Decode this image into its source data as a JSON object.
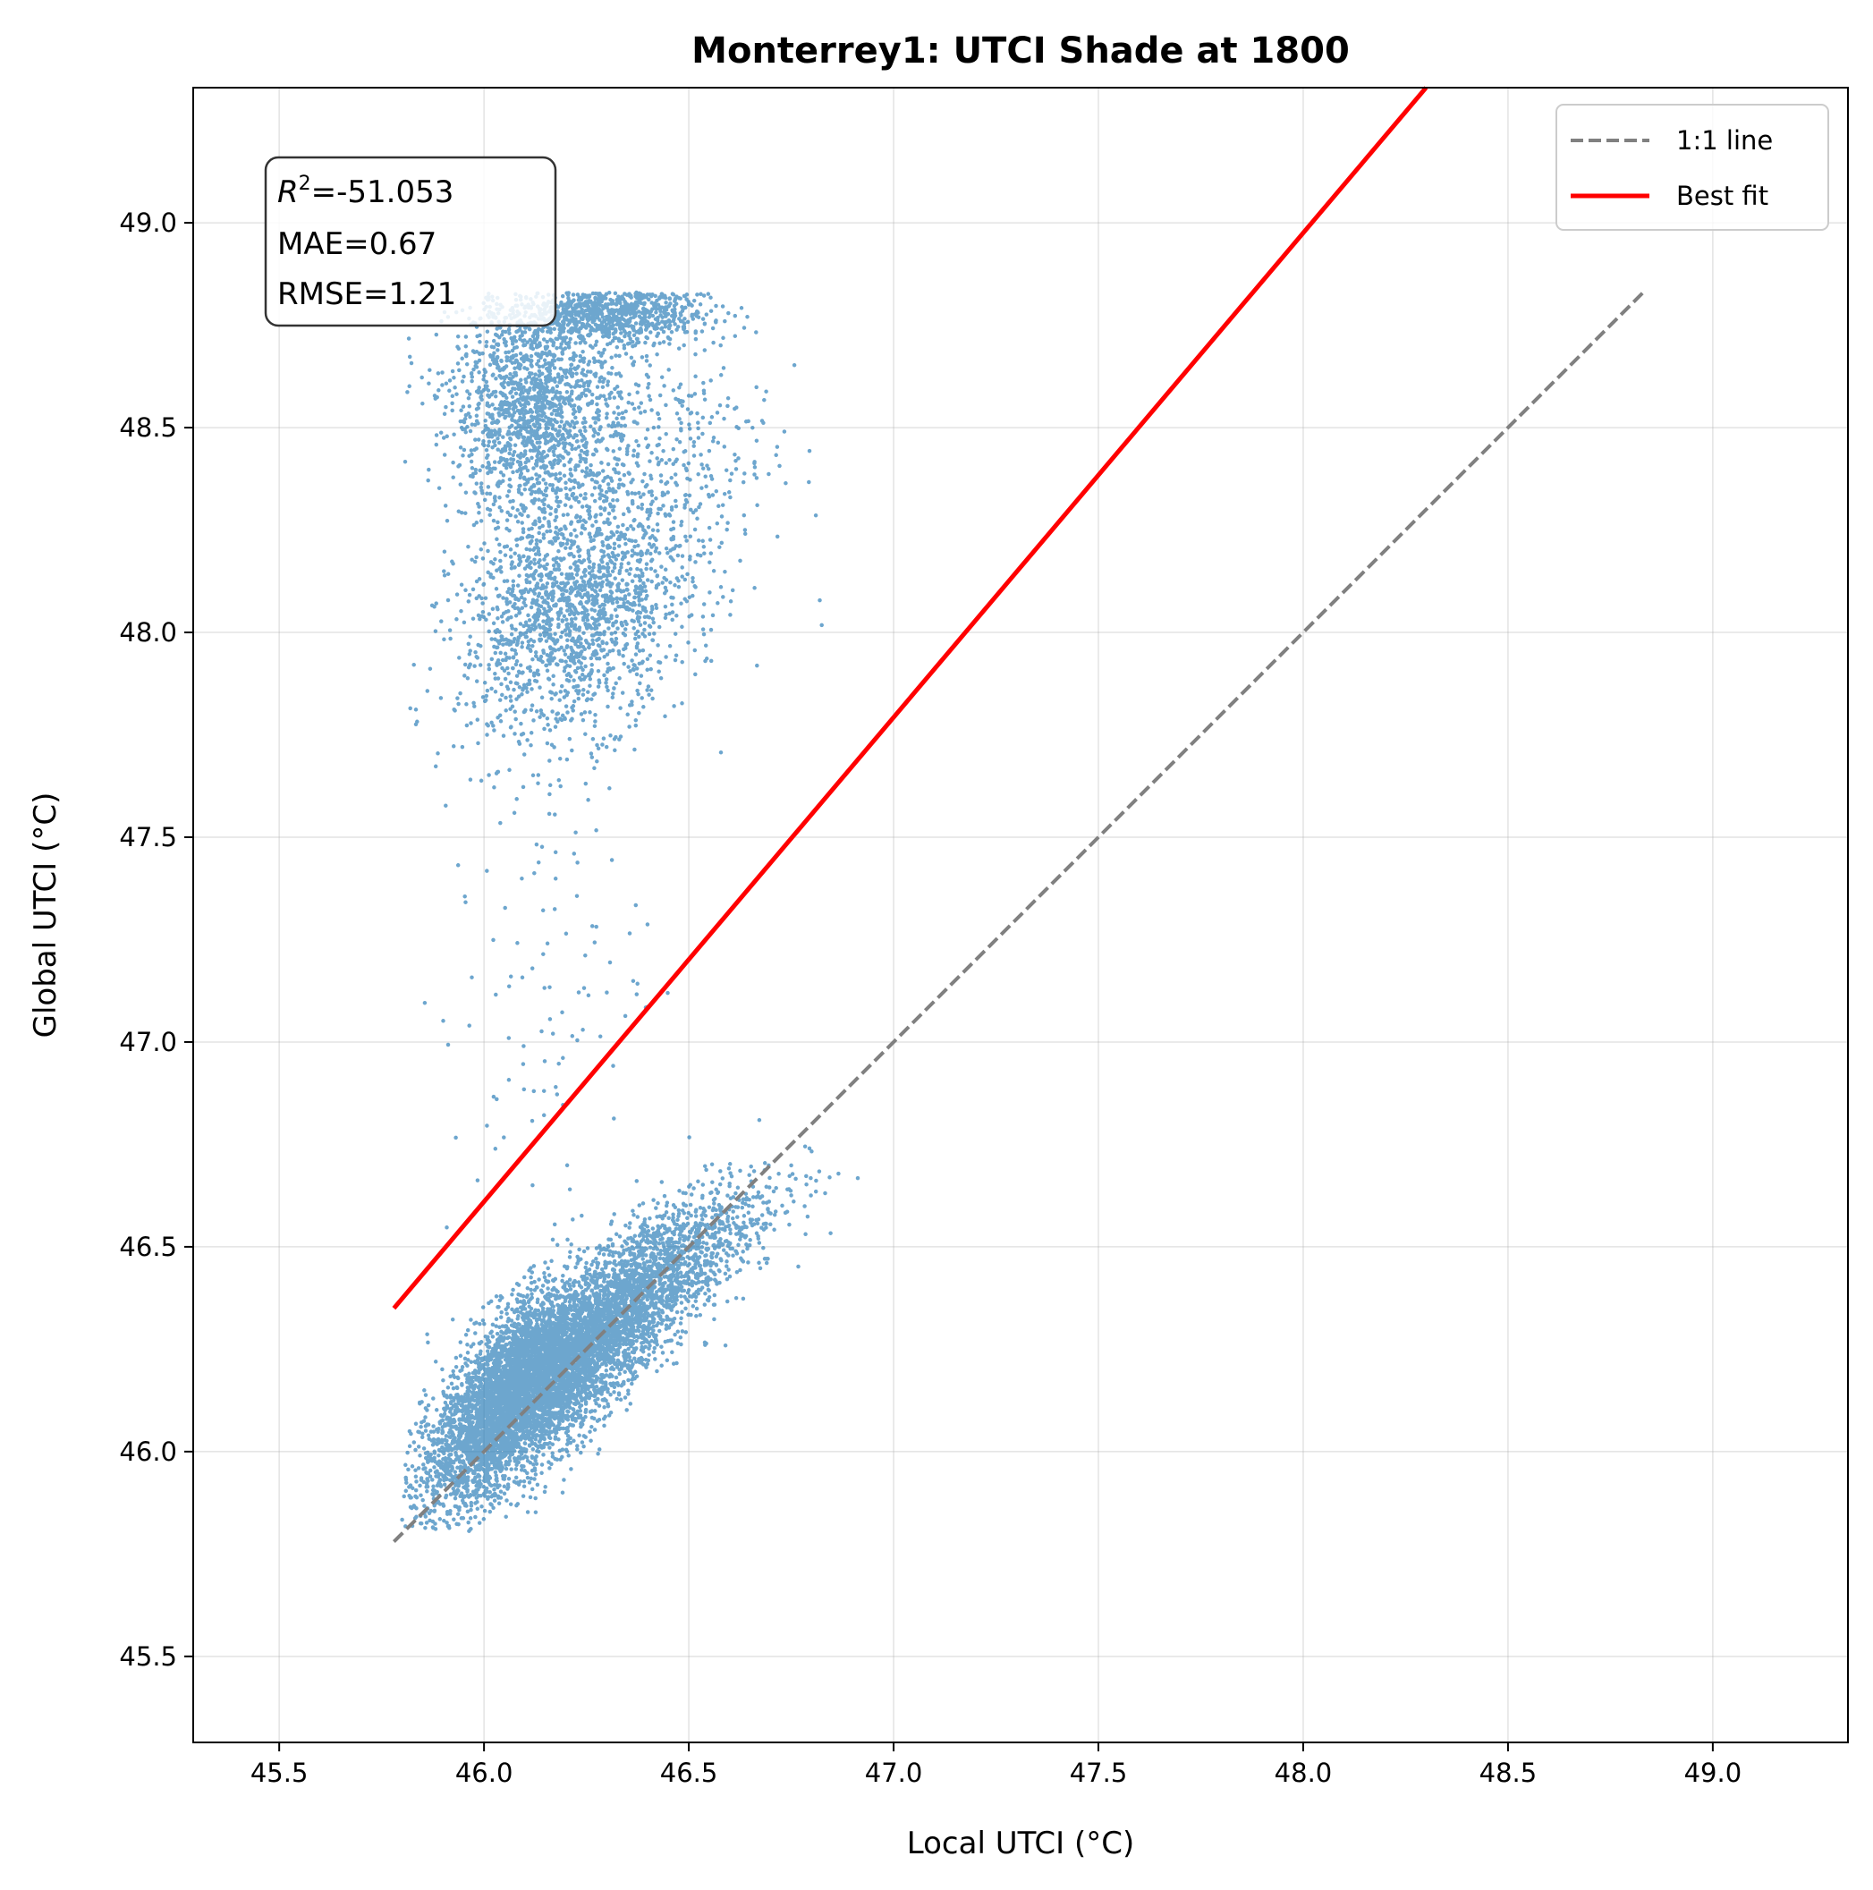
{
  "chart_data": {
    "type": "scatter",
    "title": "Monterrey1: UTCI Shade at 1800",
    "xlabel": "Local UTCI (°C)",
    "ylabel": "Global UTCI (°C)",
    "xlim": [
      45.29,
      49.33
    ],
    "ylim": [
      45.29,
      49.33
    ],
    "xticks": [
      "45.5",
      "46.0",
      "46.5",
      "47.0",
      "47.5",
      "48.0",
      "48.5",
      "49.0"
    ],
    "yticks": [
      "45.5",
      "46.0",
      "46.5",
      "47.0",
      "47.5",
      "48.0",
      "48.5",
      "49.0"
    ],
    "grid": true,
    "legend_position": "top-right",
    "point_color": "#1f77b4",
    "stats": {
      "r2_label": "R",
      "r2_sup": "2",
      "r2_value": "=-51.053",
      "mae": "MAE=0.67",
      "rmse": "RMSE=1.21"
    },
    "series": [
      {
        "name": "1:1 line",
        "type": "line",
        "style": "dashed",
        "color": "#808080",
        "x": [
          45.78,
          48.83
        ],
        "y": [
          45.78,
          48.83
        ]
      },
      {
        "name": "Best fit",
        "type": "line",
        "style": "solid",
        "color": "#ff0000",
        "x": [
          45.78,
          48.3
        ],
        "y": [
          46.35,
          49.33
        ]
      }
    ],
    "clusters": [
      {
        "cx": 46.18,
        "cy": 46.2,
        "sx": 0.16,
        "sy": 0.16,
        "corr": 0.82,
        "n": 5200
      },
      {
        "cx": 46.05,
        "cy": 46.15,
        "sx": 0.08,
        "sy": 0.12,
        "corr": 0.6,
        "n": 1800
      },
      {
        "cx": 46.45,
        "cy": 46.45,
        "sx": 0.14,
        "sy": 0.12,
        "corr": 0.75,
        "n": 900
      },
      {
        "cx": 46.22,
        "cy": 48.05,
        "sx": 0.14,
        "sy": 0.15,
        "corr": 0.25,
        "n": 1700
      },
      {
        "cx": 46.12,
        "cy": 48.55,
        "sx": 0.1,
        "sy": 0.14,
        "corr": 0.0,
        "n": 1500
      },
      {
        "cx": 46.3,
        "cy": 48.78,
        "sx": 0.12,
        "sy": 0.035,
        "corr": 0.0,
        "n": 900
      },
      {
        "cx": 46.4,
        "cy": 48.45,
        "sx": 0.15,
        "sy": 0.2,
        "corr": 0.0,
        "n": 500
      },
      {
        "cx": 46.15,
        "cy": 47.15,
        "sx": 0.12,
        "sy": 0.3,
        "corr": 0.2,
        "n": 110
      }
    ]
  }
}
